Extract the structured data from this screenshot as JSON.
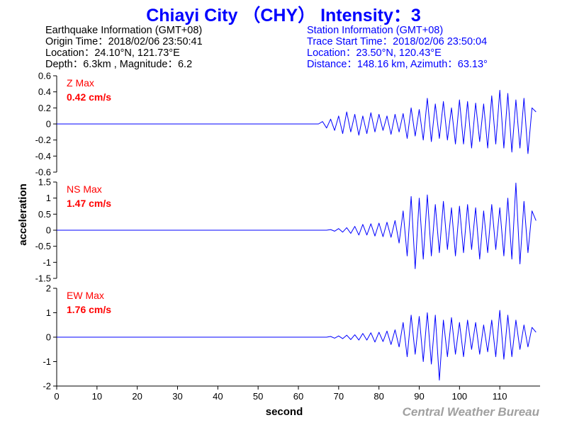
{
  "header": {
    "title": "Chiayi City （CHY） Intensity：3"
  },
  "earthquake_info": {
    "heading": "Earthquake Information  (GMT+08)",
    "origin_time": "Origin Time：2018/02/06 23:50:41",
    "location": "Location：24.10°N, 121.73°E",
    "depth_magnitude": "Depth：6.3km , Magnitude：6.2"
  },
  "station_info": {
    "heading": "Station Information  (GMT+08)",
    "trace_start": "Trace Start Time：2018/02/06 23:50:04",
    "location": "Location：23.50°N, 120.43°E",
    "distance_azimuth": "Distance：148.16 km, Azimuth：63.13°"
  },
  "footer": {
    "credit": "Central Weather Bureau"
  },
  "colors": {
    "title": "#0000ff",
    "trace": "#0000ff",
    "max_label": "#ff0000",
    "credit": "#a0a0a0"
  },
  "chart_data": {
    "type": "line",
    "xlabel": "second",
    "ylabel": "acceleration",
    "xlim": [
      0,
      120
    ],
    "xticks": [
      0,
      10,
      20,
      30,
      40,
      50,
      60,
      70,
      80,
      90,
      100,
      110
    ],
    "series": [
      {
        "name": "Z Max",
        "max_label": "Z Max",
        "max_value_label": "0.42 cm/s",
        "ylim": [
          -0.6,
          0.6
        ],
        "yticks": [
          0.6,
          0.4,
          0.2,
          0,
          -0.2,
          -0.4,
          -0.6
        ],
        "ytick_labels": [
          "0.6",
          "0.4",
          "0.2",
          "0",
          "-0.2",
          "-0.4",
          "-0.6"
        ],
        "x": [
          0,
          65,
          66,
          67,
          68,
          69,
          70,
          71,
          72,
          73,
          74,
          75,
          76,
          77,
          78,
          79,
          80,
          81,
          82,
          83,
          84,
          85,
          86,
          87,
          88,
          89,
          90,
          91,
          92,
          93,
          94,
          95,
          96,
          97,
          98,
          99,
          100,
          101,
          102,
          103,
          104,
          105,
          106,
          107,
          108,
          109,
          110,
          111,
          112,
          113,
          114,
          115,
          116,
          117,
          118,
          119
        ],
        "y": [
          0,
          0,
          0.03,
          -0.05,
          0.06,
          -0.08,
          0.1,
          -0.12,
          0.15,
          -0.1,
          0.12,
          -0.14,
          0.1,
          -0.12,
          0.14,
          -0.1,
          0.12,
          -0.08,
          0.1,
          -0.13,
          0.12,
          -0.1,
          0.13,
          -0.18,
          0.2,
          -0.15,
          0.18,
          -0.2,
          0.32,
          -0.22,
          0.25,
          -0.18,
          0.28,
          -0.2,
          0.2,
          -0.25,
          0.3,
          -0.25,
          0.28,
          -0.3,
          0.26,
          -0.22,
          0.25,
          -0.3,
          0.35,
          -0.25,
          0.42,
          -0.3,
          0.38,
          -0.35,
          0.3,
          -0.3,
          0.32,
          -0.37,
          0.2,
          0.15
        ]
      },
      {
        "name": "NS Max",
        "max_label": "NS Max",
        "max_value_label": "1.47 cm/s",
        "ylim": [
          -1.5,
          1.5
        ],
        "yticks": [
          1.5,
          1,
          0.5,
          0,
          -0.5,
          -1,
          -1.5
        ],
        "ytick_labels": [
          "1.5",
          "1",
          "0.5",
          "0",
          "-0.5",
          "-1",
          "-1.5"
        ],
        "x": [
          0,
          67,
          68,
          69,
          70,
          71,
          72,
          73,
          74,
          75,
          76,
          77,
          78,
          79,
          80,
          81,
          82,
          83,
          84,
          85,
          86,
          87,
          88,
          89,
          90,
          91,
          92,
          93,
          94,
          95,
          96,
          97,
          98,
          99,
          100,
          101,
          102,
          103,
          104,
          105,
          106,
          107,
          108,
          109,
          110,
          111,
          112,
          113,
          114,
          115,
          116,
          117,
          118,
          119
        ],
        "y": [
          0,
          0,
          0.02,
          -0.03,
          0.05,
          -0.06,
          0.08,
          -0.1,
          0.12,
          -0.15,
          0.18,
          -0.15,
          0.2,
          -0.18,
          0.22,
          -0.2,
          0.25,
          -0.22,
          0.3,
          -0.4,
          0.6,
          -0.8,
          1.05,
          -1.2,
          1.0,
          -0.9,
          1.1,
          -0.8,
          0.8,
          -0.7,
          0.9,
          -0.6,
          0.7,
          -0.8,
          0.75,
          -0.7,
          0.8,
          -0.6,
          0.7,
          -0.9,
          0.6,
          -0.7,
          0.8,
          -0.6,
          0.7,
          -0.8,
          1.0,
          -0.9,
          1.47,
          -1.05,
          0.9,
          -0.7,
          0.6,
          0.3
        ]
      },
      {
        "name": "EW Max",
        "max_label": "EW Max",
        "max_value_label": "1.76 cm/s",
        "ylim": [
          -2,
          2
        ],
        "yticks": [
          2,
          1,
          0,
          -1,
          -2
        ],
        "ytick_labels": [
          "2",
          "1",
          "0",
          "-1",
          "-2"
        ],
        "x": [
          0,
          67,
          68,
          69,
          70,
          71,
          72,
          73,
          74,
          75,
          76,
          77,
          78,
          79,
          80,
          81,
          82,
          83,
          84,
          85,
          86,
          87,
          88,
          89,
          90,
          91,
          92,
          93,
          94,
          95,
          96,
          97,
          98,
          99,
          100,
          101,
          102,
          103,
          104,
          105,
          106,
          107,
          108,
          109,
          110,
          111,
          112,
          113,
          114,
          115,
          116,
          117,
          118,
          119
        ],
        "y": [
          0,
          0,
          0.03,
          -0.04,
          0.05,
          -0.06,
          0.08,
          -0.1,
          0.1,
          -0.12,
          0.15,
          -0.12,
          0.18,
          -0.2,
          0.2,
          -0.18,
          0.25,
          -0.3,
          0.3,
          -0.4,
          0.6,
          -0.8,
          0.9,
          -0.7,
          0.85,
          -1.0,
          1.0,
          -1.1,
          0.9,
          -1.76,
          0.7,
          -0.8,
          0.8,
          -0.7,
          0.6,
          -0.8,
          0.7,
          -0.5,
          0.6,
          -0.7,
          0.5,
          -0.6,
          0.7,
          -0.8,
          1.1,
          -0.9,
          0.9,
          -0.8,
          0.7,
          -0.5,
          0.5,
          -0.4,
          0.4,
          0.2
        ]
      }
    ]
  }
}
